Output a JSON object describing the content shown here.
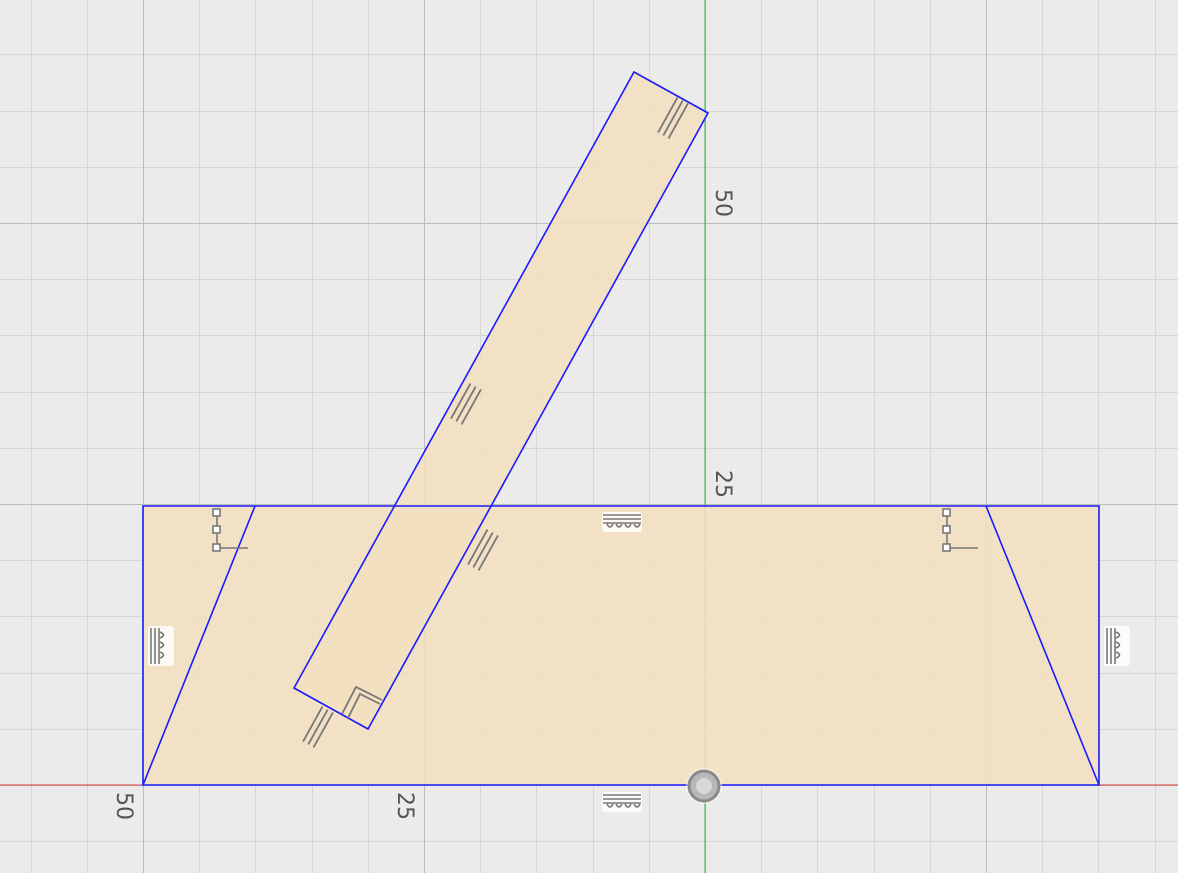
{
  "canvas": {
    "background": "#ebebeb",
    "minor_grid_color": "#d6d6d6",
    "major_grid_color": "#bcbcbc",
    "x_axis_color": "#d94040",
    "y_axis_color": "#39b54a",
    "sketch_line_color": "#1a1aff",
    "profile_fill_color": "#f2dfbf"
  },
  "axis_labels": {
    "x_left_50": "50",
    "x_left_25": "25",
    "y_up_25": "25",
    "y_up_50": "50"
  },
  "constraints": {
    "horizontal_top": "horizontal-constraint-icon",
    "horizontal_bottom": "horizontal-constraint-icon",
    "vertical_left": "vertical-constraint-icon",
    "vertical_right": "vertical-constraint-icon",
    "coincident_left": "coincident-constraint-icon",
    "coincident_right": "coincident-constraint-icon",
    "parallel_bar_top": "parallel-constraint-icon",
    "parallel_bar_middle": "parallel-constraint-icon",
    "parallel_bar_lower": "parallel-constraint-icon",
    "parallel_bar_bottom": "parallel-constraint-icon",
    "perpendicular_bar": "perpendicular-constraint-icon"
  },
  "origin": {
    "icon": "origin-point-icon"
  }
}
